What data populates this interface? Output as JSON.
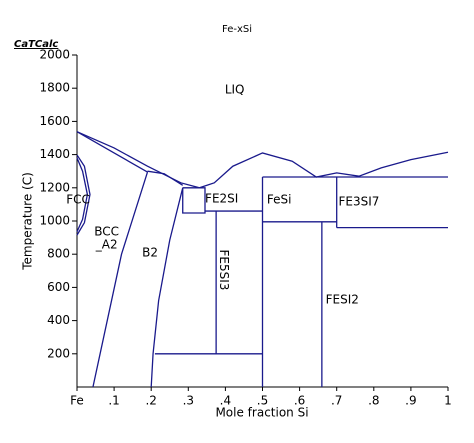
{
  "chart_data": {
    "type": "phase-diagram",
    "title": "Fe-xSi",
    "logo": "CaTCalc",
    "xlabel": "Mole fraction Si",
    "ylabel": "Temperature (C)",
    "xlim": [
      0,
      1
    ],
    "ylim": [
      0,
      2000
    ],
    "xticks": [
      {
        "value": 0,
        "label": "Fe"
      },
      {
        "value": 0.1,
        "label": ".1"
      },
      {
        "value": 0.2,
        "label": ".2"
      },
      {
        "value": 0.3,
        "label": ".3"
      },
      {
        "value": 0.4,
        "label": ".4"
      },
      {
        "value": 0.5,
        "label": ".5"
      },
      {
        "value": 0.6,
        "label": ".6"
      },
      {
        "value": 0.7,
        "label": ".7"
      },
      {
        "value": 0.8,
        "label": ".8"
      },
      {
        "value": 0.9,
        "label": ".9"
      },
      1
    ],
    "yticks": [
      200,
      400,
      600,
      800,
      1000,
      1200,
      1400,
      1600,
      1800,
      2000
    ],
    "color": "#1a1a8c",
    "series": [
      {
        "x": [
          0,
          0.1,
          0.19,
          0.28,
          0.33,
          0.37,
          0.42,
          0.5,
          0.58,
          0.645,
          0.7,
          0.76,
          0.82,
          0.9,
          1
        ],
        "values": [
          1538,
          1440,
          1330,
          1230,
          1200,
          1230,
          1330,
          1410,
          1360,
          1265,
          1290,
          1270,
          1320,
          1370,
          1414
        ]
      },
      {
        "x": [
          0,
          0.1,
          0.19
        ],
        "values": [
          1538,
          1410,
          1295
        ]
      },
      {
        "x": [
          0.043,
          0.12,
          0.19
        ],
        "values": [
          0,
          800,
          1295
        ]
      },
      {
        "x": [
          0.2,
          0.205,
          0.22,
          0.25,
          0.285
        ],
        "values": [
          0,
          200,
          520,
          885,
          1200
        ]
      },
      {
        "x": [
          0.19,
          0.235,
          0.285
        ],
        "values": [
          1300,
          1285,
          1215
        ]
      },
      {
        "x": [
          0,
          0.02,
          0.035,
          0.02,
          0
        ],
        "values": [
          1398,
          1330,
          1160,
          990,
          915
        ]
      },
      {
        "x": [
          0,
          0.015,
          0.028,
          0.015,
          0
        ],
        "values": [
          1380,
          1300,
          1160,
          1010,
          935
        ]
      },
      {
        "x": [
          0.285,
          0.345,
          0.345,
          0.285,
          0.285
        ],
        "values": [
          1200,
          1200,
          1048,
          1048,
          1200
        ]
      },
      {
        "x": [
          0.345,
          0.5
        ],
        "values": [
          1060,
          1060
        ]
      },
      {
        "x": [
          0.375,
          0.375
        ],
        "values": [
          1060,
          200
        ]
      },
      {
        "x": [
          0.21,
          0.5
        ],
        "values": [
          200,
          200
        ]
      },
      {
        "x": [
          0.5,
          0.5
        ],
        "values": [
          1265,
          0
        ]
      },
      {
        "x": [
          0.5,
          1
        ],
        "values": [
          1265,
          1265
        ]
      },
      {
        "x": [
          0.5,
          0.7
        ],
        "values": [
          995,
          995
        ]
      },
      {
        "x": [
          0.7,
          0.7
        ],
        "values": [
          1265,
          960
        ]
      },
      {
        "x": [
          0.7,
          1
        ],
        "values": [
          960,
          960
        ]
      },
      {
        "x": [
          0.66,
          0.66
        ],
        "values": [
          995,
          0
        ]
      }
    ],
    "annotations": [
      {
        "text": "LIQ",
        "x": 0.425,
        "y": 1790
      },
      {
        "text": "FCC",
        "x": 0.003,
        "y": 1127
      },
      {
        "text": "BCC",
        "x": 0.08,
        "y": 935
      },
      {
        "text": "_A2",
        "x": 0.08,
        "y": 855
      },
      {
        "text": "B2",
        "x": 0.197,
        "y": 807
      },
      {
        "text": "FE2SI",
        "x": 0.39,
        "y": 1133
      },
      {
        "text": "FeSi",
        "x": 0.545,
        "y": 1127
      },
      {
        "text": "FE3SI7",
        "x": 0.76,
        "y": 1115
      },
      {
        "text": "FESI2",
        "x": 0.715,
        "y": 524
      },
      {
        "text": "FE5SI3",
        "x": 0.395,
        "y": 705,
        "vertical": true
      }
    ]
  }
}
